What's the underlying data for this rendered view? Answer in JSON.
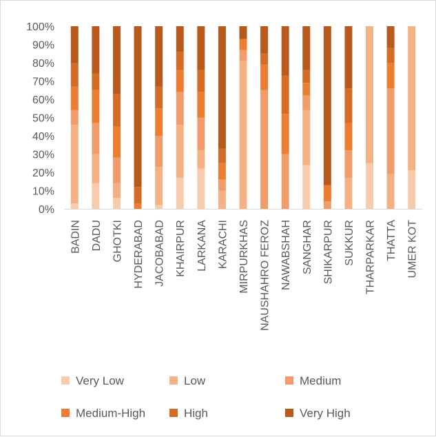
{
  "chart_data": {
    "type": "bar",
    "stacked": true,
    "percent": true,
    "categories": [
      "BADIN",
      "DADU",
      "GHOTKI",
      "HYDERABAD",
      "JACOBABAD",
      "KHAIRPUR",
      "LARKANA",
      "KARACHI",
      "MIRPURKHAS",
      "NAUSHAHRO FEROZ",
      "NAWABSHAH",
      "SANGHAR",
      "SHIKARPUR",
      "SUKKUR",
      "THARPARKAR",
      "THATTA",
      "UMER KOT"
    ],
    "series": [
      {
        "name": "Very Low",
        "color": "#f8cbad",
        "values": [
          3,
          14,
          6,
          0,
          2,
          17,
          22,
          0,
          0,
          0,
          0,
          24,
          0,
          0,
          25,
          0,
          21
        ]
      },
      {
        "name": "Low",
        "color": "#f4b183",
        "values": [
          43,
          16,
          8,
          0,
          21,
          29,
          10,
          10,
          81,
          0,
          0,
          30,
          0,
          17,
          75,
          19,
          79
        ]
      },
      {
        "name": "Medium",
        "color": "#f19c6b",
        "values": [
          8,
          17,
          14,
          0,
          17,
          18,
          18,
          6,
          6,
          65,
          30,
          8,
          4,
          15,
          0,
          47,
          0
        ]
      },
      {
        "name": "Medium-High",
        "color": "#ed7d31",
        "values": [
          13,
          18,
          17,
          3,
          15,
          12,
          14,
          9,
          6,
          14,
          22,
          7,
          9,
          15,
          0,
          14,
          0
        ]
      },
      {
        "name": "High",
        "color": "#d46b27",
        "values": [
          13,
          9,
          18,
          9,
          12,
          10,
          12,
          8,
          0,
          6,
          21,
          7,
          0,
          19,
          0,
          8,
          0
        ]
      },
      {
        "name": "Very High",
        "color": "#b85a1e",
        "values": [
          20,
          26,
          37,
          88,
          33,
          14,
          24,
          67,
          7,
          15,
          27,
          24,
          87,
          34,
          0,
          12,
          0
        ]
      }
    ],
    "ylim": [
      0,
      100
    ],
    "yticks": [
      "0%",
      "10%",
      "20%",
      "30%",
      "40%",
      "50%",
      "60%",
      "70%",
      "80%",
      "90%",
      "100%"
    ],
    "grid": false,
    "legend_position": "bottom"
  }
}
